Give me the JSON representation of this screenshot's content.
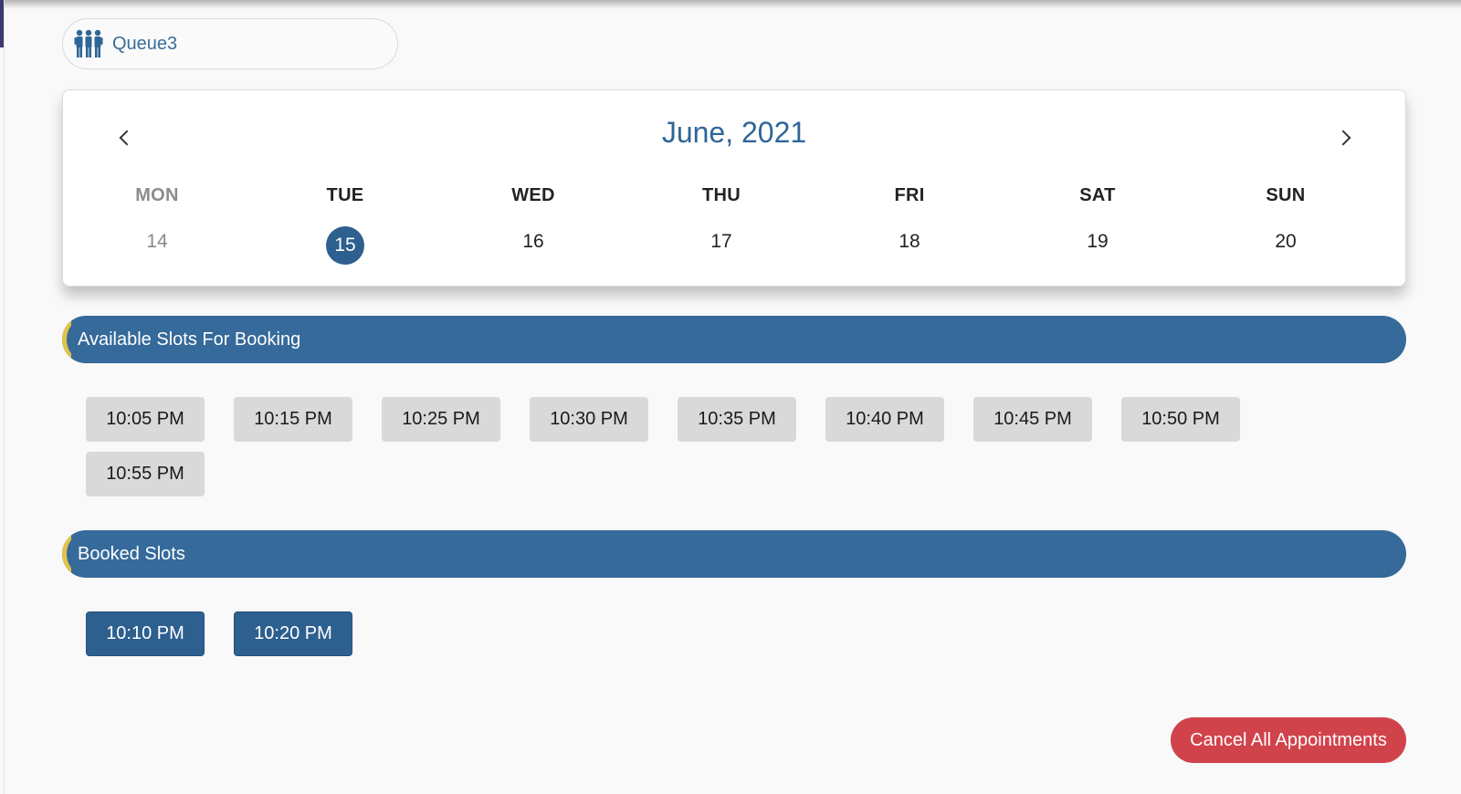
{
  "queue": {
    "label": "Queue3",
    "icon": "people-group-icon",
    "icon_color": "#2f6597"
  },
  "calendar": {
    "title": "June, 2021",
    "prev_icon": "chevron-left-icon",
    "next_icon": "chevron-right-icon",
    "days": [
      {
        "name": "MON",
        "date": "14",
        "state": "past"
      },
      {
        "name": "TUE",
        "date": "15",
        "state": "selected"
      },
      {
        "name": "WED",
        "date": "16",
        "state": "normal"
      },
      {
        "name": "THU",
        "date": "17",
        "state": "normal"
      },
      {
        "name": "FRI",
        "date": "18",
        "state": "normal"
      },
      {
        "name": "SAT",
        "date": "19",
        "state": "normal"
      },
      {
        "name": "SUN",
        "date": "20",
        "state": "normal"
      }
    ]
  },
  "available": {
    "title": "Available Slots For Booking",
    "slots": [
      "10:05 PM",
      "10:15 PM",
      "10:25 PM",
      "10:30 PM",
      "10:35 PM",
      "10:40 PM",
      "10:45 PM",
      "10:50 PM",
      "10:55 PM"
    ]
  },
  "booked": {
    "title": "Booked Slots",
    "slots": [
      "10:10 PM",
      "10:20 PM"
    ]
  },
  "actions": {
    "cancel_all_label": "Cancel All Appointments"
  },
  "colors": {
    "primary": "#356a9a",
    "selected": "#2d5f8f",
    "accent": "#e2c34a",
    "danger": "#d1434b",
    "slot_available": "#d9d9d9"
  }
}
